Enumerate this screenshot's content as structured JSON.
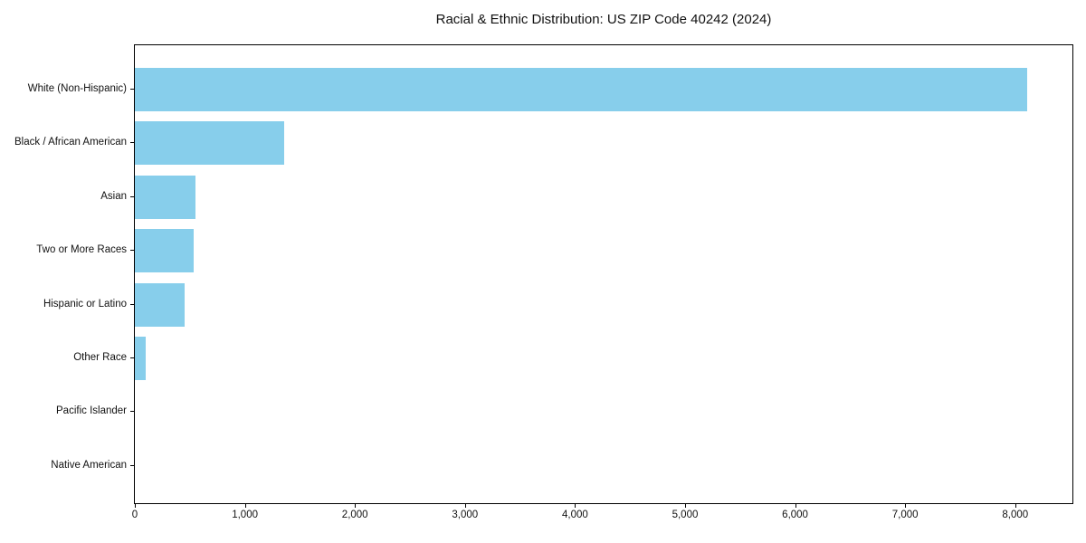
{
  "figure": {
    "background": "#ffffff",
    "axis_color": "#000000",
    "text_color": "#111111"
  },
  "chart_data": {
    "type": "bar",
    "orientation": "horizontal",
    "title": "Racial & Ethnic Distribution: US ZIP Code 40242 (2024)",
    "categories": [
      "White (Non-Hispanic)",
      "Black / African American",
      "Asian",
      "Two or More Races",
      "Hispanic or Latino",
      "Other Race",
      "Pacific Islander",
      "Native American"
    ],
    "values": [
      8110,
      1360,
      550,
      535,
      455,
      100,
      0,
      0
    ],
    "bar_color": "#87ceeb",
    "xlabel": "",
    "ylabel": "",
    "xlim": [
      0,
      8520
    ],
    "x_ticks": [
      0,
      1000,
      2000,
      3000,
      4000,
      5000,
      6000,
      7000,
      8000
    ],
    "x_tick_labels": [
      "0",
      "1,000",
      "2,000",
      "3,000",
      "4,000",
      "5,000",
      "6,000",
      "7,000",
      "8,000"
    ],
    "grid": false,
    "legend": false
  }
}
